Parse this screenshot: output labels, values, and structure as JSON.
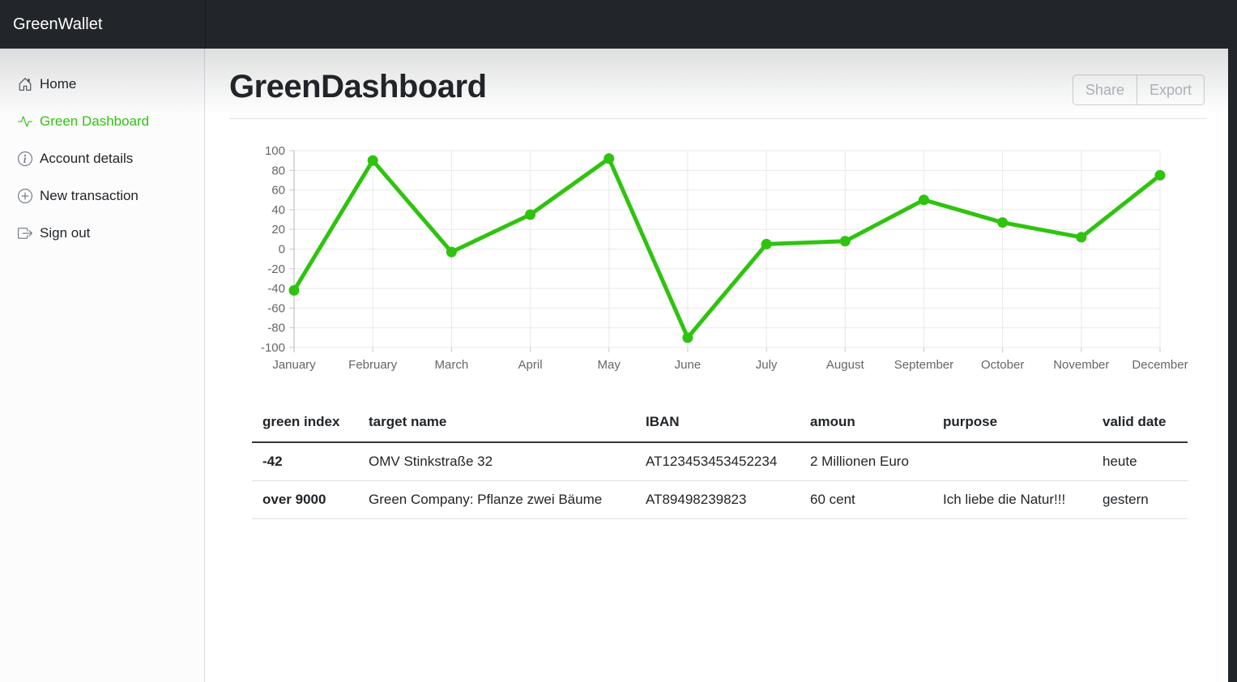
{
  "navbar": {
    "brand": "GreenWallet"
  },
  "sidebar": {
    "items": [
      {
        "label": "Home",
        "icon": "home-icon",
        "active": false
      },
      {
        "label": "Green Dashboard",
        "icon": "activity-icon",
        "active": true
      },
      {
        "label": "Account details",
        "icon": "info-circle-icon",
        "active": false
      },
      {
        "label": "New transaction",
        "icon": "plus-circle-icon",
        "active": false
      },
      {
        "label": "Sign out",
        "icon": "sign-out-icon",
        "active": false
      }
    ]
  },
  "header": {
    "title": "GreenDashboard",
    "share_label": "Share",
    "export_label": "Export"
  },
  "chart_data": {
    "type": "line",
    "categories": [
      "January",
      "February",
      "March",
      "April",
      "May",
      "June",
      "July",
      "August",
      "September",
      "October",
      "November",
      "December"
    ],
    "values": [
      -42,
      90,
      -3,
      35,
      92,
      -90,
      5,
      8,
      50,
      27,
      12,
      75
    ],
    "title": "",
    "xlabel": "",
    "ylabel": "",
    "ylim": [
      -100,
      100
    ],
    "ytick_step": 20,
    "grid": true,
    "legend": false,
    "line_color": "#2fc30f",
    "point_color": "#2fc30f"
  },
  "table": {
    "headers": [
      "green index",
      "target name",
      "IBAN",
      "amoun",
      "purpose",
      "valid date"
    ],
    "rows": [
      {
        "cells": [
          "-42",
          "OMV Stinkstraße 32",
          "AT123453453452234",
          "2 Millionen Euro",
          "",
          "heute"
        ]
      },
      {
        "cells": [
          "over 9000",
          "Green Company: Pflanze zwei Bäume",
          "AT89498239823",
          "60 cent",
          "Ich liebe die Natur!!!",
          "gestern"
        ]
      }
    ]
  },
  "colors": {
    "accent_green": "#2fc30f",
    "navbar_bg": "#22262b",
    "grid_line": "#e9e9eb",
    "axis_line": "#b4b4b8",
    "tick_text": "#666666"
  }
}
